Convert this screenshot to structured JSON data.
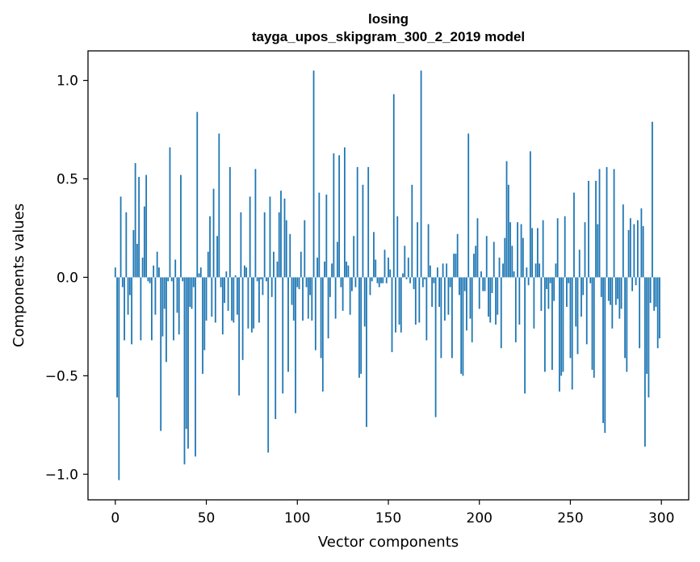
{
  "chart_data": {
    "type": "bar",
    "title": "losing",
    "subtitle": "tayga_upos_skipgram_300_2_2019 model",
    "xlabel": "Vector components",
    "ylabel": "Components values",
    "xlim": [
      -15,
      315
    ],
    "ylim": [
      -1.13,
      1.15
    ],
    "xticks": [
      0,
      50,
      100,
      150,
      200,
      250,
      300
    ],
    "yticks": [
      -1.0,
      -0.5,
      0.0,
      0.5,
      1.0
    ],
    "ytick_labels": [
      "−1.0",
      "−0.5",
      "0.0",
      "0.5",
      "1.0"
    ],
    "xtick_labels": [
      "0",
      "50",
      "100",
      "150",
      "200",
      "250",
      "300"
    ],
    "grid": false,
    "bar_color": "#1f77b4",
    "values": [
      0.05,
      -0.61,
      -1.03,
      0.41,
      -0.05,
      -0.32,
      0.33,
      -0.19,
      -0.09,
      -0.34,
      0.24,
      0.58,
      0.17,
      0.51,
      -0.32,
      0.1,
      0.36,
      0.52,
      -0.02,
      -0.03,
      -0.32,
      0.06,
      -0.19,
      0.13,
      0.05,
      -0.78,
      -0.3,
      -0.16,
      -0.43,
      -0.02,
      0.66,
      -0.02,
      -0.32,
      0.09,
      -0.18,
      -0.29,
      0.52,
      -0.02,
      -0.95,
      -0.77,
      -0.87,
      -0.15,
      -0.16,
      -0.05,
      -0.91,
      0.84,
      0.02,
      0.05,
      -0.49,
      -0.37,
      -0.22,
      0.13,
      0.31,
      -0.2,
      0.45,
      -0.23,
      0.21,
      0.73,
      -0.05,
      -0.29,
      -0.13,
      0.03,
      -0.17,
      0.56,
      -0.22,
      -0.23,
      0.01,
      -0.19,
      -0.6,
      0.33,
      -0.42,
      0.06,
      0.05,
      -0.26,
      0.41,
      -0.28,
      -0.26,
      0.55,
      -0.02,
      -0.23,
      -0.01,
      -0.09,
      0.33,
      -0.02,
      -0.89,
      0.41,
      -0.1,
      0.13,
      -0.72,
      0.08,
      0.33,
      0.44,
      -0.59,
      0.4,
      0.29,
      -0.48,
      0.22,
      -0.14,
      -0.22,
      -0.69,
      -0.05,
      -0.06,
      0.13,
      -0.22,
      0.29,
      -0.05,
      -0.21,
      -0.09,
      -0.22,
      1.05,
      -0.37,
      0.1,
      0.43,
      -0.41,
      -0.58,
      0.08,
      0.42,
      -0.31,
      -0.1,
      0.07,
      0.63,
      -0.21,
      0.18,
      0.62,
      -0.05,
      -0.17,
      0.66,
      0.08,
      0.06,
      -0.19,
      -0.07,
      0.21,
      -0.05,
      0.56,
      -0.51,
      -0.49,
      0.47,
      -0.25,
      -0.76,
      0.56,
      -0.09,
      -0.02,
      0.23,
      0.09,
      -0.03,
      -0.05,
      -0.03,
      -0.03,
      0.14,
      -0.03,
      0.1,
      0.04,
      -0.38,
      0.93,
      -0.28,
      0.31,
      -0.24,
      -0.28,
      0.02,
      0.16,
      -0.01,
      0.1,
      -0.03,
      0.47,
      -0.06,
      -0.24,
      0.28,
      -0.23,
      1.05,
      -0.05,
      -0.01,
      -0.32,
      0.27,
      0.06,
      -0.15,
      -0.03,
      -0.71,
      0.05,
      -0.15,
      -0.41,
      0.07,
      -0.22,
      0.07,
      -0.19,
      -0.05,
      -0.41,
      0.12,
      0.12,
      0.22,
      -0.09,
      -0.49,
      -0.5,
      -0.07,
      -0.27,
      0.73,
      -0.21,
      -0.33,
      0.12,
      0.16,
      0.3,
      -0.16,
      0.03,
      -0.07,
      -0.07,
      0.21,
      -0.2,
      -0.23,
      -0.08,
      0.18,
      -0.24,
      -0.19,
      0.1,
      -0.36,
      0.07,
      0.2,
      0.59,
      0.47,
      0.28,
      0.16,
      0.03,
      -0.33,
      0.28,
      -0.24,
      0.27,
      0.2,
      -0.59,
      0.05,
      -0.04,
      0.64,
      0.25,
      -0.26,
      0.07,
      0.25,
      0.07,
      -0.17,
      0.29,
      -0.48,
      -0.06,
      -0.16,
      -0.03,
      -0.47,
      -0.12,
      0.07,
      0.3,
      -0.58,
      -0.5,
      -0.48,
      0.31,
      -0.15,
      -0.03,
      -0.41,
      -0.57,
      0.43,
      -0.25,
      -0.39,
      0.14,
      -0.2,
      -0.09,
      0.28,
      -0.34,
      0.49,
      -0.03,
      -0.47,
      -0.51,
      0.49,
      0.27,
      0.55,
      -0.1,
      -0.74,
      -0.79,
      0.56,
      -0.12,
      -0.14,
      -0.26,
      0.55,
      -0.14,
      -0.11,
      -0.21,
      -0.16,
      0.37,
      -0.41,
      -0.48,
      0.24,
      0.3,
      -0.07,
      0.27,
      -0.04,
      0.29,
      -0.36,
      0.35,
      0.26,
      -0.86,
      -0.49,
      -0.61,
      -0.13,
      0.79,
      -0.17,
      -0.15,
      -0.36,
      -0.31
    ]
  }
}
